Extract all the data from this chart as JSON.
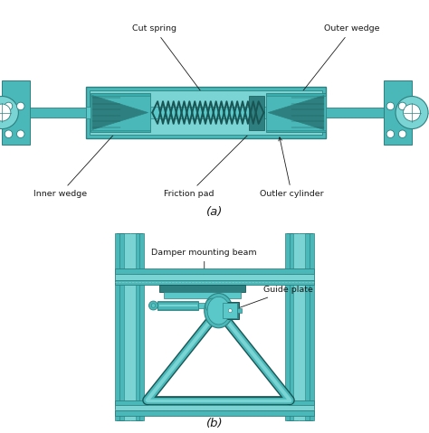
{
  "teal_main": "#4ab8b8",
  "teal_dark": "#2e8080",
  "teal_light": "#7ad4d4",
  "teal_mid": "#5ac8c8",
  "teal_very_dark": "#1a5555",
  "teal_fill": "#3aacac",
  "bg_color": "#ffffff",
  "label_color": "#1a1a1a",
  "fig_width": 4.74,
  "fig_height": 4.79,
  "dpi": 100,
  "label_a": "(a)",
  "label_b": "(b)",
  "ann_cut_spring": "Cut spring",
  "ann_outer_wedge": "Outer wedge",
  "ann_inner_wedge": "Inner wedge",
  "ann_friction_pad": "Friction pad",
  "ann_outler_cylinder": "Outler cylinder",
  "ann_damper_mounting": "Damper mounting beam",
  "ann_guide_plate": "Guide plate"
}
